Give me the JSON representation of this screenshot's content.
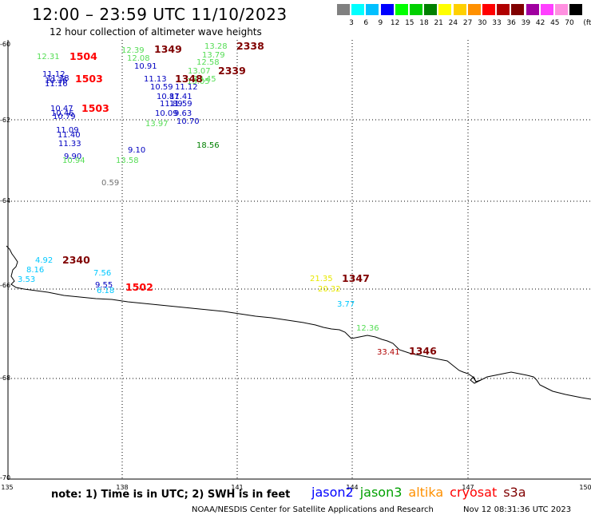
{
  "header": {
    "title": "12:00 – 23:59 UTC 11/10/2023",
    "subtitle": "12 hour collection of altimeter wave heights"
  },
  "color_scale": {
    "colors": [
      "#808080",
      "#00ffff",
      "#00c0ff",
      "#0000ff",
      "#00ff00",
      "#00d000",
      "#008000",
      "#ffff00",
      "#ffd000",
      "#ff9000",
      "#ff0000",
      "#b00000",
      "#800000",
      "#a000a0",
      "#ff40ff",
      "#ff90e0",
      "#000000"
    ],
    "labels": [
      "3",
      "6",
      "9",
      "12",
      "15",
      "18",
      "21",
      "24",
      "27",
      "30",
      "33",
      "36",
      "39",
      "42",
      "45",
      "70"
    ],
    "unit": "(ft)"
  },
  "axes": {
    "lat_labels": [
      "-60",
      "-62",
      "-64",
      "-66",
      "-68",
      "-70"
    ],
    "lon_labels": [
      "135",
      "138",
      "141",
      "144",
      "147",
      "150"
    ]
  },
  "observations": [
    {
      "text": "12.31",
      "color": "#55dd55"
    },
    {
      "text": "11.12",
      "color": "#0000c0"
    },
    {
      "text": "11.38",
      "color": "#0000c0"
    },
    {
      "text": "10.36",
      "color": "#0000c0"
    },
    {
      "text": "11.16",
      "color": "#0000c0"
    },
    {
      "text": "10.47",
      "color": "#0000c0"
    },
    {
      "text": "10.46",
      "color": "#0000c0"
    },
    {
      "text": "10.79",
      "color": "#0000c0"
    },
    {
      "text": "11.09",
      "color": "#0000c0"
    },
    {
      "text": "11.40",
      "color": "#0000c0"
    },
    {
      "text": "11.33",
      "color": "#0000c0"
    },
    {
      "text": "9.90",
      "color": "#0000c0"
    },
    {
      "text": "10.94",
      "color": "#55dd55"
    },
    {
      "text": "12.39",
      "color": "#55dd55"
    },
    {
      "text": "12.08",
      "color": "#55dd55"
    },
    {
      "text": "10.91",
      "color": "#0000c0"
    },
    {
      "text": "11.13",
      "color": "#0000c0"
    },
    {
      "text": "10.59",
      "color": "#0000c0"
    },
    {
      "text": "11.12",
      "color": "#0000c0"
    },
    {
      "text": "10.87",
      "color": "#0000c0"
    },
    {
      "text": "11.41",
      "color": "#0000c0"
    },
    {
      "text": "11.89",
      "color": "#0000c0"
    },
    {
      "text": "11.59",
      "color": "#0000c0"
    },
    {
      "text": "10.09",
      "color": "#0000c0"
    },
    {
      "text": "9.63",
      "color": "#0000c0"
    },
    {
      "text": "13.97",
      "color": "#55dd55"
    },
    {
      "text": "10.70",
      "color": "#0000c0"
    },
    {
      "text": "13.28",
      "color": "#55dd55"
    },
    {
      "text": "13.79",
      "color": "#55dd55"
    },
    {
      "text": "12.58",
      "color": "#55dd55"
    },
    {
      "text": "13.07",
      "color": "#55dd55"
    },
    {
      "text": "13.45",
      "color": "#55dd55"
    },
    {
      "text": "13.05",
      "color": "#55dd55"
    },
    {
      "text": "9.10",
      "color": "#0000c0"
    },
    {
      "text": "13.58",
      "color": "#55dd55"
    },
    {
      "text": "18.56",
      "color": "#008000"
    },
    {
      "text": "0.59",
      "color": "#707070"
    },
    {
      "text": "4.92",
      "color": "#00c8ff"
    },
    {
      "text": "8.16",
      "color": "#00c8ff"
    },
    {
      "text": "3.53",
      "color": "#00c8ff"
    },
    {
      "text": "7.56",
      "color": "#00c8ff"
    },
    {
      "text": "9.55",
      "color": "#0000c0"
    },
    {
      "text": "6.18",
      "color": "#00c8ff"
    },
    {
      "text": "21.35",
      "color": "#e8e800"
    },
    {
      "text": "20.32",
      "color": "#e8e800"
    },
    {
      "text": "3.77",
      "color": "#00c8ff"
    },
    {
      "text": "12.36",
      "color": "#55dd55"
    },
    {
      "text": "33.41",
      "color": "#b00000"
    }
  ],
  "passes": [
    {
      "text": "1504",
      "color": "#ff0000"
    },
    {
      "text": "1503",
      "color": "#ff0000"
    },
    {
      "text": "1503",
      "color": "#ff0000"
    },
    {
      "text": "1349",
      "color": "#800000"
    },
    {
      "text": "2338",
      "color": "#800000"
    },
    {
      "text": "1348",
      "color": "#800000"
    },
    {
      "text": "2339",
      "color": "#800000"
    },
    {
      "text": "2340",
      "color": "#800000"
    },
    {
      "text": "1502",
      "color": "#ff0000"
    },
    {
      "text": "1347",
      "color": "#800000"
    },
    {
      "text": "1346",
      "color": "#800000"
    }
  ],
  "footer": {
    "note": "note:  1) Time is in UTC;  2) SWH is in feet",
    "satellites": [
      {
        "name": "jason2",
        "color": "#0000ff"
      },
      {
        "name": "jason3",
        "color": "#00a000"
      },
      {
        "name": "altika",
        "color": "#ff9000"
      },
      {
        "name": "cryosat",
        "color": "#ff0000"
      },
      {
        "name": "s3a",
        "color": "#800000"
      }
    ],
    "credit": "NOAA/NESDIS Center for Satellite Applications and Research",
    "generated": "Nov 12 08:31:36 UTC 2023"
  }
}
